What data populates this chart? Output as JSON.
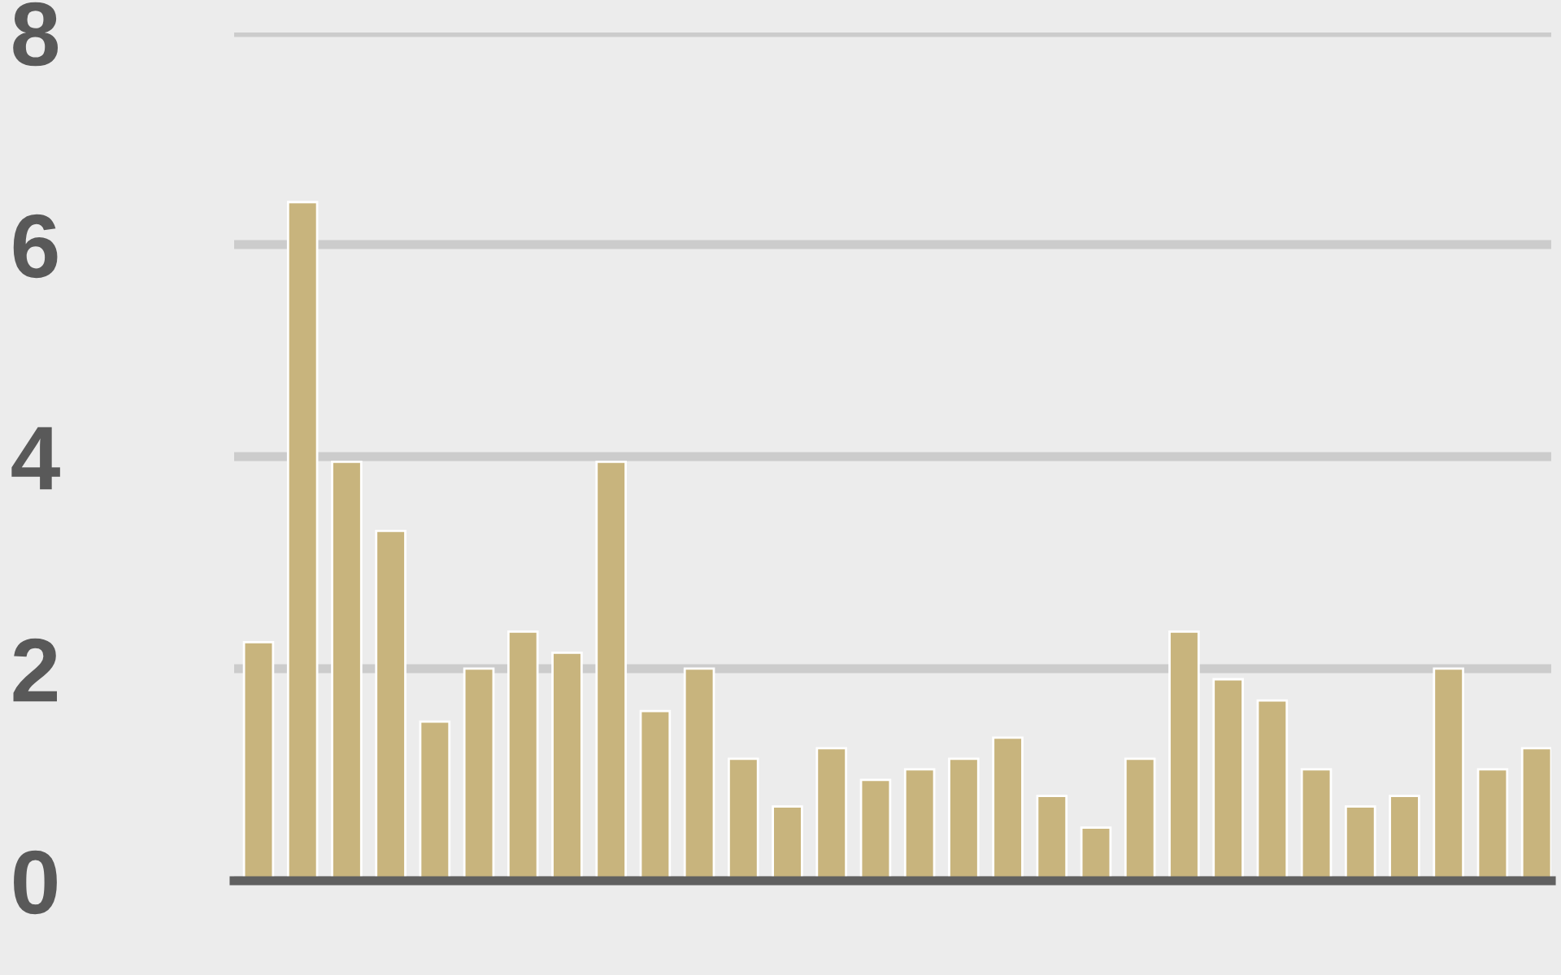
{
  "chart_data": {
    "type": "bar",
    "categories": [
      null,
      null,
      null,
      null,
      null,
      null,
      null,
      null,
      null,
      null,
      null,
      null,
      null,
      null,
      null,
      null,
      null,
      null,
      null,
      null,
      null,
      null,
      null,
      null,
      null,
      null,
      null,
      null,
      null,
      null
    ],
    "values": [
      2.25,
      6.4,
      3.95,
      3.3,
      1.5,
      2.0,
      2.35,
      2.15,
      3.95,
      1.6,
      2.0,
      1.15,
      0.7,
      1.25,
      0.95,
      1.05,
      1.15,
      1.35,
      0.8,
      0.5,
      1.15,
      2.35,
      1.9,
      1.7,
      1.05,
      0.7,
      0.8,
      2.0,
      1.05,
      1.25
    ],
    "color": "#c8b47d",
    "ylim": [
      0,
      8
    ],
    "yticks": [
      0,
      2,
      4,
      6,
      8
    ],
    "grid": "y",
    "tick_labels": "y"
  }
}
